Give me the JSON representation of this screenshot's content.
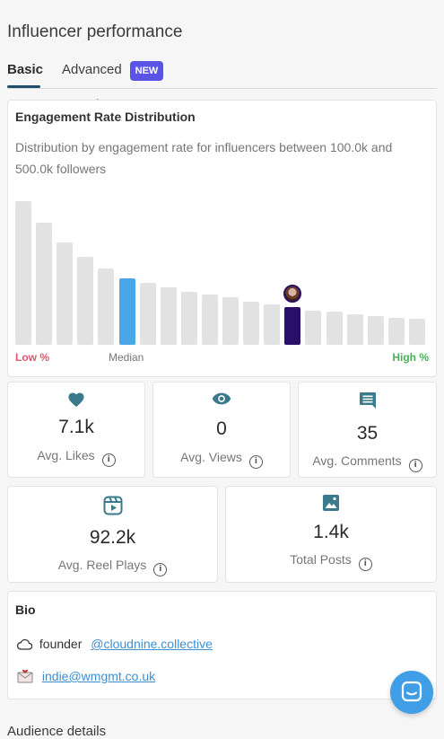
{
  "header": {
    "title": "Influencer performance"
  },
  "tabs": {
    "basic": "Basic",
    "advanced": "Advanced",
    "new_badge": "NEW"
  },
  "chart": {
    "title": "Engagement Rate Distribution",
    "description": "Distribution by engagement rate for influencers between 100.0k and 500.0k followers",
    "low_label": "Low %",
    "median_label": "Median",
    "high_label": "High %"
  },
  "chart_data": {
    "type": "bar",
    "title": "Engagement Rate Distribution",
    "values": [
      100,
      85,
      71,
      61,
      53,
      46,
      43,
      40,
      37,
      35,
      33,
      30,
      28,
      26,
      24,
      23,
      21,
      20,
      19,
      18
    ],
    "median_index": 5,
    "current_index": 13,
    "ylim": [
      0,
      100
    ],
    "xlabel_left": "Low %",
    "xlabel_mid": "Median",
    "xlabel_right": "High %",
    "colors": {
      "default": "#e2e2e2",
      "median": "#4aa6e6",
      "current": "#2a0f68"
    }
  },
  "stats": {
    "likes": {
      "value": "7.1k",
      "label": "Avg. Likes",
      "icon": "heart-icon"
    },
    "views": {
      "value": "0",
      "label": "Avg. Views",
      "icon": "eye-icon"
    },
    "comments": {
      "value": "35",
      "label": "Avg. Comments",
      "icon": "comment-icon"
    },
    "reel_plays": {
      "value": "92.2k",
      "label": "Avg. Reel Plays",
      "icon": "reel-icon"
    },
    "total_posts": {
      "value": "1.4k",
      "label": "Total Posts",
      "icon": "image-icon"
    }
  },
  "bio": {
    "title": "Bio",
    "text": "founder",
    "handle": "@cloudnine.collective",
    "email": "indie@wmgmt.co.uk"
  },
  "footer_peek": {
    "text": "Audience details"
  },
  "colors": {
    "accent": "#3a7a8c",
    "link": "#3d8fd0",
    "brand": "#5a54e6"
  }
}
